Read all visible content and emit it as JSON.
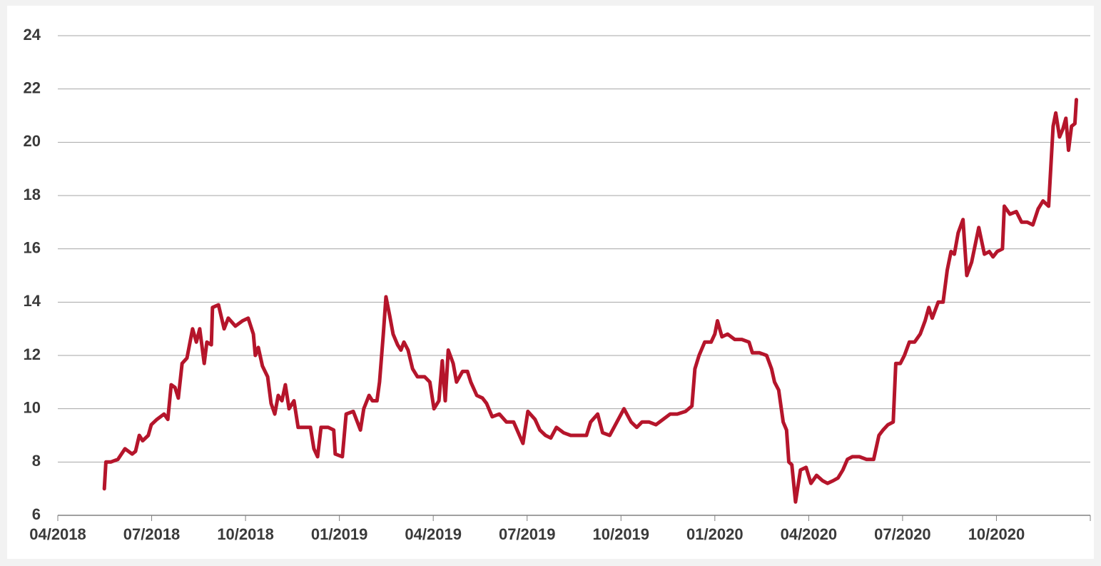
{
  "chart_data": {
    "type": "line",
    "color": "#b5152b",
    "grid": true,
    "xlim": [
      2018.25,
      2021.0
    ],
    "xticks": [
      {
        "value": 2018.25,
        "label": "04/2018"
      },
      {
        "value": 2018.5,
        "label": "07/2018"
      },
      {
        "value": 2018.75,
        "label": "10/2018"
      },
      {
        "value": 2019.0,
        "label": "01/2019"
      },
      {
        "value": 2019.25,
        "label": "04/2019"
      },
      {
        "value": 2019.5,
        "label": "07/2019"
      },
      {
        "value": 2019.75,
        "label": "10/2019"
      },
      {
        "value": 2020.0,
        "label": "01/2020"
      },
      {
        "value": 2020.25,
        "label": "04/2020"
      },
      {
        "value": 2020.5,
        "label": "07/2020"
      },
      {
        "value": 2020.75,
        "label": "10/2020"
      }
    ],
    "ylim": [
      6,
      24
    ],
    "yticks": [
      6,
      8,
      10,
      12,
      14,
      16,
      18,
      20,
      22,
      24
    ],
    "x": [
      2018.374,
      2018.378,
      2018.391,
      2018.41,
      2018.429,
      2018.448,
      2018.457,
      2018.467,
      2018.476,
      2018.491,
      2018.499,
      2018.514,
      2018.533,
      2018.543,
      2018.552,
      2018.562,
      2018.571,
      2018.581,
      2018.594,
      2018.609,
      2018.619,
      2018.628,
      2018.64,
      2018.647,
      2018.659,
      2018.662,
      2018.678,
      2018.693,
      2018.704,
      2018.723,
      2018.742,
      2018.757,
      2018.771,
      2018.776,
      2018.784,
      2018.795,
      2018.809,
      2018.818,
      2018.828,
      2018.837,
      2018.847,
      2018.856,
      2018.866,
      2018.879,
      2018.89,
      2018.909,
      2018.923,
      2018.932,
      2018.942,
      2018.951,
      2018.97,
      2018.985,
      2018.989,
      2019.008,
      2019.018,
      2019.037,
      2019.056,
      2019.065,
      2019.079,
      2019.088,
      2019.1,
      2019.107,
      2019.117,
      2019.124,
      2019.134,
      2019.143,
      2019.155,
      2019.164,
      2019.172,
      2019.183,
      2019.195,
      2019.208,
      2019.227,
      2019.241,
      2019.252,
      2019.265,
      2019.274,
      2019.282,
      2019.29,
      2019.303,
      2019.312,
      2019.328,
      2019.341,
      2019.35,
      2019.366,
      2019.381,
      2019.392,
      2019.407,
      2019.426,
      2019.445,
      2019.464,
      2019.489,
      2019.502,
      2019.521,
      2019.534,
      2019.549,
      2019.563,
      2019.578,
      2019.597,
      2019.616,
      2019.635,
      2019.658,
      2019.669,
      2019.688,
      2019.701,
      2019.72,
      2019.739,
      2019.758,
      2019.777,
      2019.792,
      2019.806,
      2019.825,
      2019.843,
      2019.862,
      2019.881,
      2019.9,
      2019.922,
      2019.939,
      2019.947,
      2019.958,
      2019.973,
      2019.99,
      2020.0,
      2020.007,
      2020.019,
      2020.034,
      2020.053,
      2020.072,
      2020.091,
      2020.1,
      2020.119,
      2020.138,
      2020.151,
      2020.159,
      2020.17,
      2020.182,
      2020.191,
      2020.197,
      2020.205,
      2020.215,
      2020.228,
      2020.243,
      2020.256,
      2020.271,
      2020.287,
      2020.3,
      2020.315,
      2020.328,
      2020.341,
      2020.353,
      2020.366,
      2020.385,
      2020.404,
      2020.423,
      2020.437,
      2020.448,
      2020.461,
      2020.475,
      2020.482,
      2020.494,
      2020.505,
      2020.518,
      2020.532,
      2020.547,
      2020.56,
      2020.57,
      2020.579,
      2020.595,
      2020.608,
      2020.619,
      2020.629,
      2020.638,
      2020.648,
      2020.661,
      2020.671,
      2020.684,
      2020.703,
      2020.718,
      2020.731,
      2020.741,
      2020.752,
      2020.766,
      2020.771,
      2020.786,
      2020.803,
      2020.817,
      2020.832,
      2020.847,
      2020.861,
      2020.874,
      2020.889,
      2020.901,
      2020.908,
      2020.918,
      2020.927,
      2020.935,
      2020.942,
      2020.95,
      2020.959,
      2020.963
    ],
    "values": [
      7.0,
      8.0,
      8.0,
      8.1,
      8.5,
      8.3,
      8.4,
      9.0,
      8.8,
      9.0,
      9.4,
      9.6,
      9.8,
      9.6,
      10.9,
      10.8,
      10.4,
      11.7,
      11.9,
      13.0,
      12.5,
      13.0,
      11.7,
      12.5,
      12.4,
      13.8,
      13.9,
      13.0,
      13.4,
      13.1,
      13.3,
      13.4,
      12.8,
      12.0,
      12.3,
      11.6,
      11.2,
      10.2,
      9.8,
      10.5,
      10.3,
      10.9,
      10.0,
      10.3,
      9.3,
      9.3,
      9.3,
      8.5,
      8.2,
      9.3,
      9.3,
      9.2,
      8.3,
      8.2,
      9.8,
      9.9,
      9.2,
      10.0,
      10.5,
      10.3,
      10.3,
      11.0,
      12.8,
      14.2,
      13.5,
      12.8,
      12.4,
      12.2,
      12.5,
      12.2,
      11.5,
      11.2,
      11.2,
      11.0,
      10.0,
      10.3,
      11.8,
      10.3,
      12.2,
      11.7,
      11.0,
      11.4,
      11.4,
      11.0,
      10.5,
      10.4,
      10.2,
      9.7,
      9.8,
      9.5,
      9.5,
      8.7,
      9.9,
      9.6,
      9.2,
      9.0,
      8.9,
      9.3,
      9.1,
      9.0,
      9.0,
      9.0,
      9.5,
      9.8,
      9.1,
      9.0,
      9.5,
      10.0,
      9.5,
      9.3,
      9.5,
      9.5,
      9.4,
      9.6,
      9.8,
      9.8,
      9.9,
      10.1,
      11.5,
      12.0,
      12.5,
      12.5,
      12.8,
      13.3,
      12.7,
      12.8,
      12.6,
      12.6,
      12.5,
      12.1,
      12.1,
      12.0,
      11.5,
      11.0,
      10.7,
      9.5,
      9.2,
      8.0,
      7.9,
      6.5,
      7.7,
      7.8,
      7.2,
      7.5,
      7.3,
      7.2,
      7.3,
      7.4,
      7.7,
      8.1,
      8.2,
      8.2,
      8.1,
      8.1,
      9.0,
      9.2,
      9.4,
      9.5,
      11.7,
      11.7,
      12.0,
      12.5,
      12.5,
      12.8,
      13.3,
      13.8,
      13.4,
      14.0,
      14.0,
      15.2,
      15.9,
      15.8,
      16.6,
      17.1,
      15.0,
      15.5,
      16.8,
      15.8,
      15.9,
      15.7,
      15.9,
      16.0,
      17.6,
      17.3,
      17.4,
      17.0,
      17.0,
      16.9,
      17.5,
      17.8,
      17.6,
      20.6,
      21.1,
      20.2,
      20.5,
      20.9,
      19.7,
      20.6,
      20.7,
      21.6
    ]
  }
}
